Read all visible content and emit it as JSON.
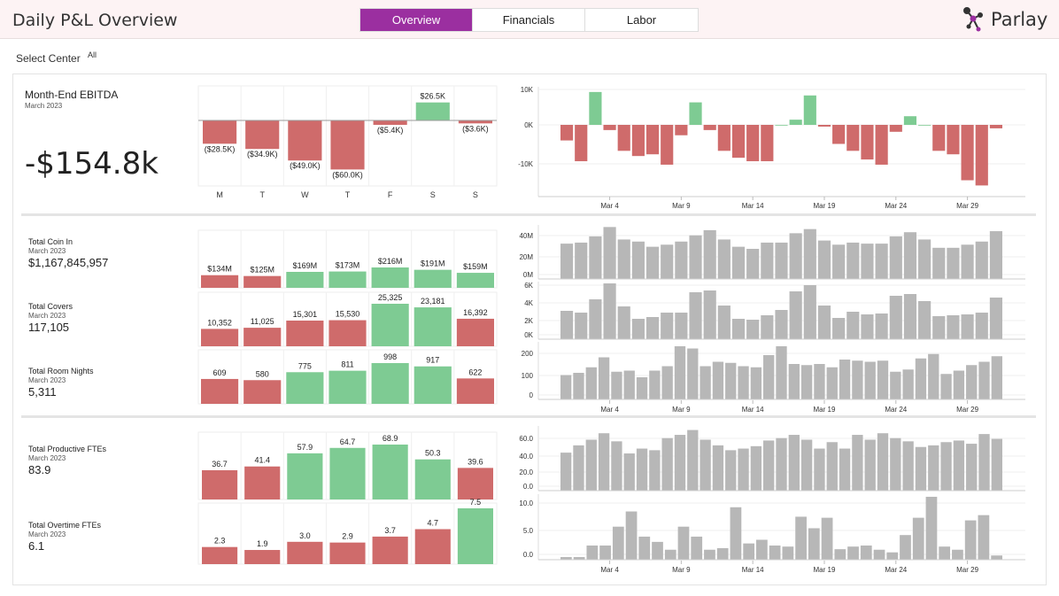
{
  "header": {
    "title": "Daily P&L Overview",
    "tabs": [
      {
        "label": "Overview",
        "active": true
      },
      {
        "label": "Financials",
        "active": false
      },
      {
        "label": "Labor",
        "active": false
      }
    ],
    "logo_text": "Parlay"
  },
  "filter": {
    "label": "Select Center",
    "value": "All"
  },
  "colors": {
    "red": "#cf6b6b",
    "green": "#7ecb93",
    "gray": "#b7b7b7",
    "accent": "#9b2fa0"
  },
  "weekdays": [
    "M",
    "T",
    "W",
    "T",
    "F",
    "S",
    "S"
  ],
  "kpis": {
    "ebitda": {
      "title": "Month-End EBITDA",
      "period": "March 2023",
      "value": "-$154.8k"
    },
    "coin_in": {
      "title": "Total Coin In",
      "period": "March 2023",
      "value": "$1,167,845,957"
    },
    "covers": {
      "title": "Total Covers",
      "period": "March 2023",
      "value": "117,105"
    },
    "room_nights": {
      "title": "Total Room Nights",
      "period": "March 2023",
      "value": "5,311"
    },
    "productive_ftes": {
      "title": "Total Productive FTEs",
      "period": "March 2023",
      "value": "83.9"
    },
    "overtime_ftes": {
      "title": "Total Overtime FTEs",
      "period": "March 2023",
      "value": "6.1"
    }
  },
  "chart_data": [
    {
      "id": "ebitda-weekday",
      "type": "bar",
      "categories": [
        "M",
        "T",
        "W",
        "T",
        "F",
        "S",
        "S"
      ],
      "values": [
        -28.5,
        -34.9,
        -49.0,
        -60.0,
        -5.4,
        26.5,
        -3.6
      ],
      "labels": [
        "($28.5K)",
        "($34.9K)",
        "($49.0K)",
        "($60.0K)",
        "($5.4K)",
        "$26.5K",
        "($3.6K)"
      ],
      "colors": [
        "red",
        "red",
        "red",
        "red",
        "red",
        "green",
        "red"
      ],
      "ylim": [
        -65,
        30
      ]
    },
    {
      "id": "coin-in-weekday",
      "type": "bar",
      "values": [
        134,
        125,
        169,
        173,
        216,
        191,
        159
      ],
      "labels": [
        "$134M",
        "$125M",
        "$169M",
        "$173M",
        "$216M",
        "$191M",
        "$159M"
      ],
      "colors": [
        "red",
        "red",
        "green",
        "green",
        "green",
        "green",
        "green"
      ],
      "ylim": [
        0,
        216
      ]
    },
    {
      "id": "covers-weekday",
      "type": "bar",
      "values": [
        10352,
        11025,
        15301,
        15530,
        25325,
        23181,
        16392
      ],
      "labels": [
        "10,352",
        "11,025",
        "15,301",
        "15,530",
        "25,325",
        "23,181",
        "16,392"
      ],
      "colors": [
        "red",
        "red",
        "red",
        "red",
        "green",
        "green",
        "red"
      ],
      "ylim": [
        0,
        25325
      ]
    },
    {
      "id": "room-nights-weekday",
      "type": "bar",
      "values": [
        609,
        580,
        775,
        811,
        998,
        917,
        622
      ],
      "labels": [
        "609",
        "580",
        "775",
        "811",
        "998",
        "917",
        "622"
      ],
      "colors": [
        "red",
        "red",
        "green",
        "green",
        "green",
        "green",
        "red"
      ],
      "ylim": [
        0,
        998
      ]
    },
    {
      "id": "productive-ftes-weekday",
      "type": "bar",
      "values": [
        36.7,
        41.4,
        57.9,
        64.7,
        68.9,
        50.3,
        39.6
      ],
      "labels": [
        "36.7",
        "41.4",
        "57.9",
        "64.7",
        "68.9",
        "50.3",
        "39.6"
      ],
      "colors": [
        "red",
        "red",
        "green",
        "green",
        "green",
        "green",
        "red"
      ],
      "ylim": [
        0,
        68.9
      ]
    },
    {
      "id": "overtime-ftes-weekday",
      "type": "bar",
      "values": [
        2.3,
        1.9,
        3.0,
        2.9,
        3.7,
        4.7,
        7.5
      ],
      "labels": [
        "2.3",
        "1.9",
        "3.0",
        "2.9",
        "3.7",
        "4.7",
        "7.5"
      ],
      "colors": [
        "red",
        "red",
        "red",
        "red",
        "red",
        "red",
        "green"
      ],
      "ylim": [
        0,
        7.5
      ]
    },
    {
      "id": "ebitda-daily",
      "type": "bar",
      "x": [
        "Mar 1",
        "Mar 2",
        "Mar 3",
        "Mar 4",
        "Mar 5",
        "Mar 6",
        "Mar 7",
        "Mar 8",
        "Mar 9",
        "Mar 10",
        "Mar 11",
        "Mar 12",
        "Mar 13",
        "Mar 14",
        "Mar 15",
        "Mar 16",
        "Mar 17",
        "Mar 18",
        "Mar 19",
        "Mar 20",
        "Mar 21",
        "Mar 22",
        "Mar 23",
        "Mar 24",
        "Mar 25",
        "Mar 26",
        "Mar 27",
        "Mar 28",
        "Mar 29",
        "Mar 30",
        "Mar 31"
      ],
      "values": [
        -4.5,
        -10.5,
        9.5,
        -1.5,
        -7.5,
        -9,
        -8.5,
        -11.5,
        -3,
        6.5,
        -1.5,
        -7.5,
        -9.5,
        -10.5,
        -10.5,
        0,
        1.5,
        8.5,
        -0.5,
        -5.5,
        -7.5,
        -10,
        -11.5,
        -2,
        2.5,
        0,
        -7.5,
        -8.5,
        -16,
        -17.5,
        -1
      ],
      "yticks": [
        "10K",
        "0K",
        "-10K"
      ],
      "ylim": [
        -19,
        11
      ],
      "xticks": [
        "Mar 4",
        "Mar 9",
        "Mar 14",
        "Mar 19",
        "Mar 24",
        "Mar 29"
      ]
    },
    {
      "id": "coin-in-daily",
      "type": "bar",
      "values": [
        34,
        35,
        41,
        50,
        38,
        36,
        31,
        33,
        36,
        42,
        47,
        38,
        31,
        29,
        35,
        35,
        44,
        48,
        37,
        33,
        35,
        34,
        34,
        41,
        45,
        38,
        30,
        30,
        33,
        36,
        46
      ],
      "yticks": [
        "40M",
        "20M",
        "0M"
      ],
      "ylim": [
        0,
        52
      ]
    },
    {
      "id": "covers-daily",
      "type": "bar",
      "values": [
        3.2,
        3.0,
        4.5,
        6.3,
        3.7,
        2.3,
        2.5,
        3.0,
        3.0,
        5.3,
        5.5,
        3.8,
        2.3,
        2.2,
        2.7,
        3.3,
        5.4,
        6.1,
        3.8,
        2.4,
        3.1,
        2.8,
        2.9,
        4.9,
        5.1,
        4.3,
        2.6,
        2.7,
        2.8,
        3.0,
        4.7
      ],
      "yticks": [
        "6K",
        "4K",
        "2K",
        "0K"
      ],
      "ylim": [
        0,
        6.5
      ]
    },
    {
      "id": "room-nights-daily",
      "type": "bar",
      "values": [
        110,
        120,
        145,
        190,
        125,
        130,
        100,
        130,
        150,
        240,
        230,
        150,
        170,
        165,
        150,
        145,
        200,
        240,
        160,
        155,
        160,
        145,
        180,
        175,
        170,
        175,
        125,
        135,
        185,
        205,
        115,
        130,
        155,
        170,
        195
      ],
      "yticks": [
        "200",
        "100",
        "0"
      ],
      "ylim": [
        0,
        260
      ]
    },
    {
      "id": "productive-ftes-daily",
      "type": "bar",
      "values": [
        47,
        56,
        63,
        71,
        61,
        46,
        52,
        50,
        65,
        69,
        75,
        63,
        56,
        50,
        52,
        55,
        62,
        65,
        69,
        63,
        52,
        60,
        52,
        69,
        63,
        71,
        65,
        61,
        54,
        56,
        60,
        62,
        58,
        70,
        64
      ],
      "yticks": [
        "60.0",
        "40.0",
        "20.0",
        "0.0"
      ],
      "ylim": [
        0,
        80
      ]
    },
    {
      "id": "overtime-ftes-daily",
      "type": "bar",
      "values": [
        0.5,
        0.5,
        2.7,
        2.7,
        6.3,
        9.2,
        4.4,
        3.4,
        1.9,
        6.3,
        4.4,
        1.9,
        2.2,
        10.0,
        3.1,
        3.8,
        2.7,
        2.5,
        8.2,
        6.0,
        8.0,
        2.0,
        2.5,
        2.7,
        1.9,
        1.4,
        4.7,
        8.0,
        12.0,
        2.5,
        1.9,
        7.5,
        8.5,
        0.8
      ],
      "yticks": [
        "10.0",
        "5.0",
        "0.0"
      ],
      "ylim": [
        0,
        12.5
      ]
    }
  ]
}
